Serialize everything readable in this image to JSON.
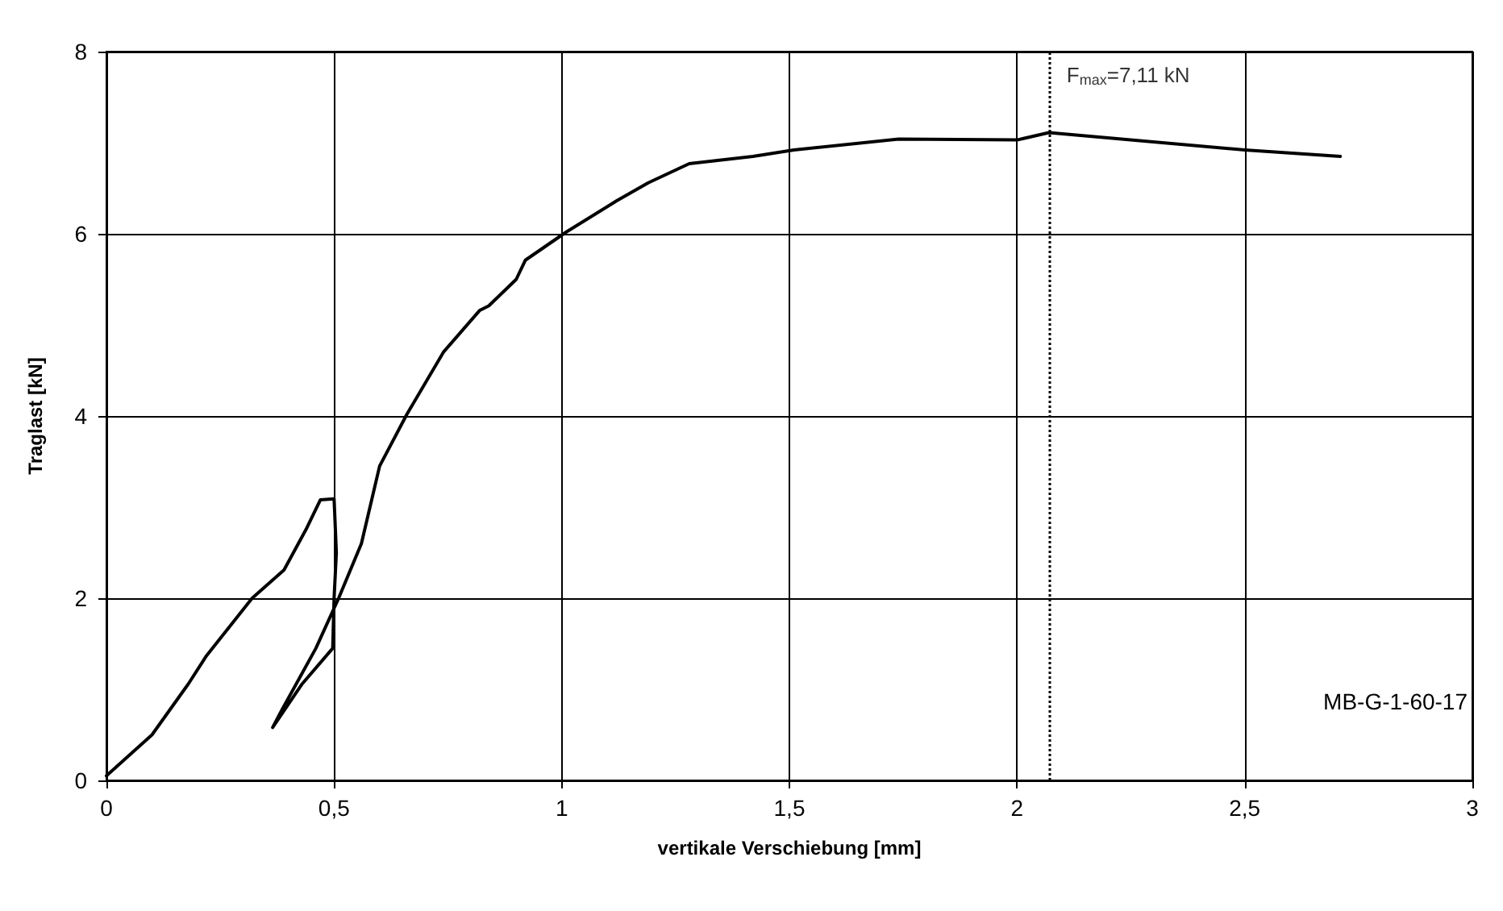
{
  "chart_data": {
    "type": "line",
    "xlabel": "vertikale Verschiebung [mm]",
    "ylabel": "Traglast [kN]",
    "x": [
      0,
      0.1,
      0.18,
      0.22,
      0.32,
      0.39,
      0.44,
      0.47,
      0.5,
      0.505,
      0.5,
      0.497,
      0.43,
      0.365,
      0.385,
      0.46,
      0.51,
      0.56,
      0.6,
      0.66,
      0.74,
      0.82,
      0.84,
      0.9,
      0.92,
      1.01,
      1.12,
      1.19,
      1.28,
      1.42,
      1.51,
      1.74,
      2.0,
      2.07,
      2.5,
      2.71
    ],
    "series": [
      {
        "color": "#000000",
        "values": [
          0.05,
          0.5,
          1.06,
          1.37,
          2.0,
          2.31,
          2.77,
          3.08,
          3.09,
          2.5,
          2.0,
          1.45,
          1.06,
          0.58,
          0.77,
          1.45,
          2.0,
          2.6,
          3.45,
          4.02,
          4.7,
          5.16,
          5.21,
          5.5,
          5.71,
          6.02,
          6.36,
          6.56,
          6.77,
          6.85,
          6.92,
          7.04,
          7.03,
          7.11,
          6.92,
          6.85
        ]
      }
    ],
    "xlim": [
      0,
      3
    ],
    "xticks": [
      0,
      {
        "value": 0.5,
        "label": "0,5"
      },
      1,
      {
        "value": 1.5,
        "label": "1,5"
      },
      2,
      {
        "value": 2.5,
        "label": "2,5"
      },
      3
    ],
    "ylim": [
      0,
      8
    ],
    "yticks": [
      0,
      2,
      4,
      6,
      8
    ],
    "grid": true,
    "marker": "none",
    "line_style": "solid",
    "ref_lines": [
      {
        "axis": "x",
        "value": 2.07,
        "line_style": "dotted",
        "color": "#000000"
      }
    ],
    "annotations": [
      {
        "text": "F$_{max}$=7,11 kN",
        "x": 2.07,
        "y": 7.11
      },
      "MB-G-1-60-17"
    ]
  }
}
